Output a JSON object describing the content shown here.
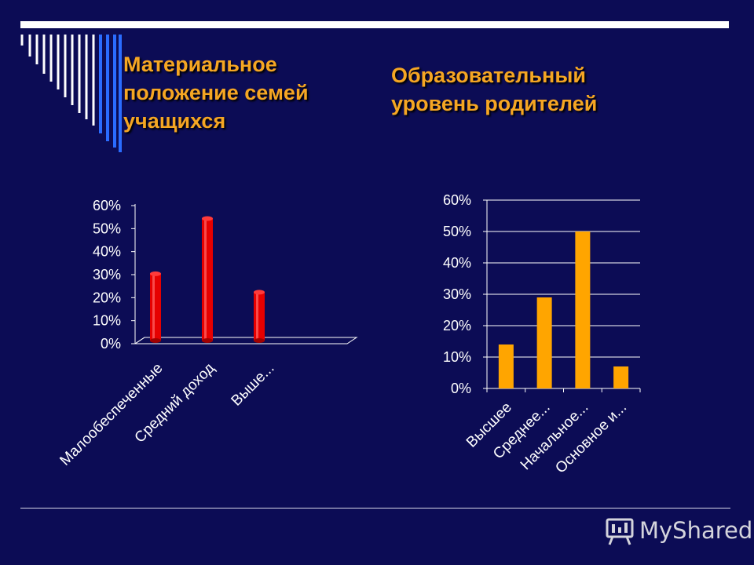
{
  "slide": {
    "title_left": "Материальное положение семей учащихся",
    "title_left_lines": [
      "Материальное",
      "положение семей",
      "учащихся"
    ],
    "title_right_lines": [
      "Образовательный",
      "уровень родителей"
    ],
    "watermark": "MyShared",
    "colors": {
      "background": "#0c0c55",
      "title": "#f5a623",
      "bar_left": "#e60000",
      "bar_right": "#ffa500"
    }
  },
  "chart_data": [
    {
      "type": "bar",
      "title": "Материальное положение семей учащихся",
      "categories": [
        "Малообеспеченные",
        "Средний доход",
        "Выше..."
      ],
      "values": [
        0.29,
        0.53,
        0.21
      ],
      "yticks": [
        "0%",
        "10%",
        "20%",
        "30%",
        "40%",
        "50%",
        "60%"
      ],
      "ylim": [
        0,
        0.6
      ],
      "grid": false
    },
    {
      "type": "bar",
      "title": "Образовательный уровень родителей",
      "categories": [
        "Высшее",
        "Среднее...",
        "Начальное...",
        "Основное и..."
      ],
      "values": [
        0.14,
        0.29,
        0.5,
        0.07
      ],
      "yticks": [
        "0%",
        "10%",
        "20%",
        "30%",
        "40%",
        "50%",
        "60%"
      ],
      "ylim": [
        0,
        0.6
      ],
      "grid": true
    }
  ]
}
